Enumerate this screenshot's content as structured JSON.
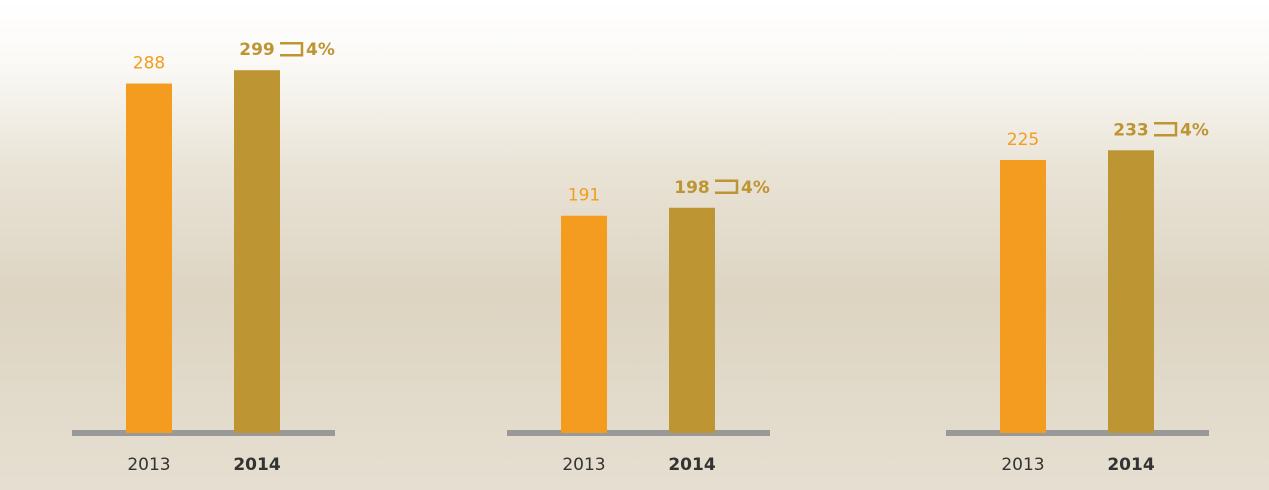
{
  "chart_data": [
    {
      "type": "bar",
      "categories": [
        "2013",
        "2014"
      ],
      "values": [
        288,
        299
      ],
      "colors": [
        "#f39c1f",
        "#bd9533"
      ],
      "ylim": [
        0,
        300
      ],
      "annotation": "4%"
    },
    {
      "type": "bar",
      "categories": [
        "2013",
        "2014"
      ],
      "values": [
        191,
        198
      ],
      "colors": [
        "#f39c1f",
        "#bd9533"
      ],
      "ylim": [
        0,
        320
      ],
      "annotation": "4%"
    },
    {
      "type": "bar",
      "categories": [
        "2013",
        "2014"
      ],
      "values": [
        225,
        233
      ],
      "colors": [
        "#f39c1f",
        "#bd9533"
      ],
      "ylim": [
        0,
        300
      ],
      "annotation": "4%"
    }
  ]
}
